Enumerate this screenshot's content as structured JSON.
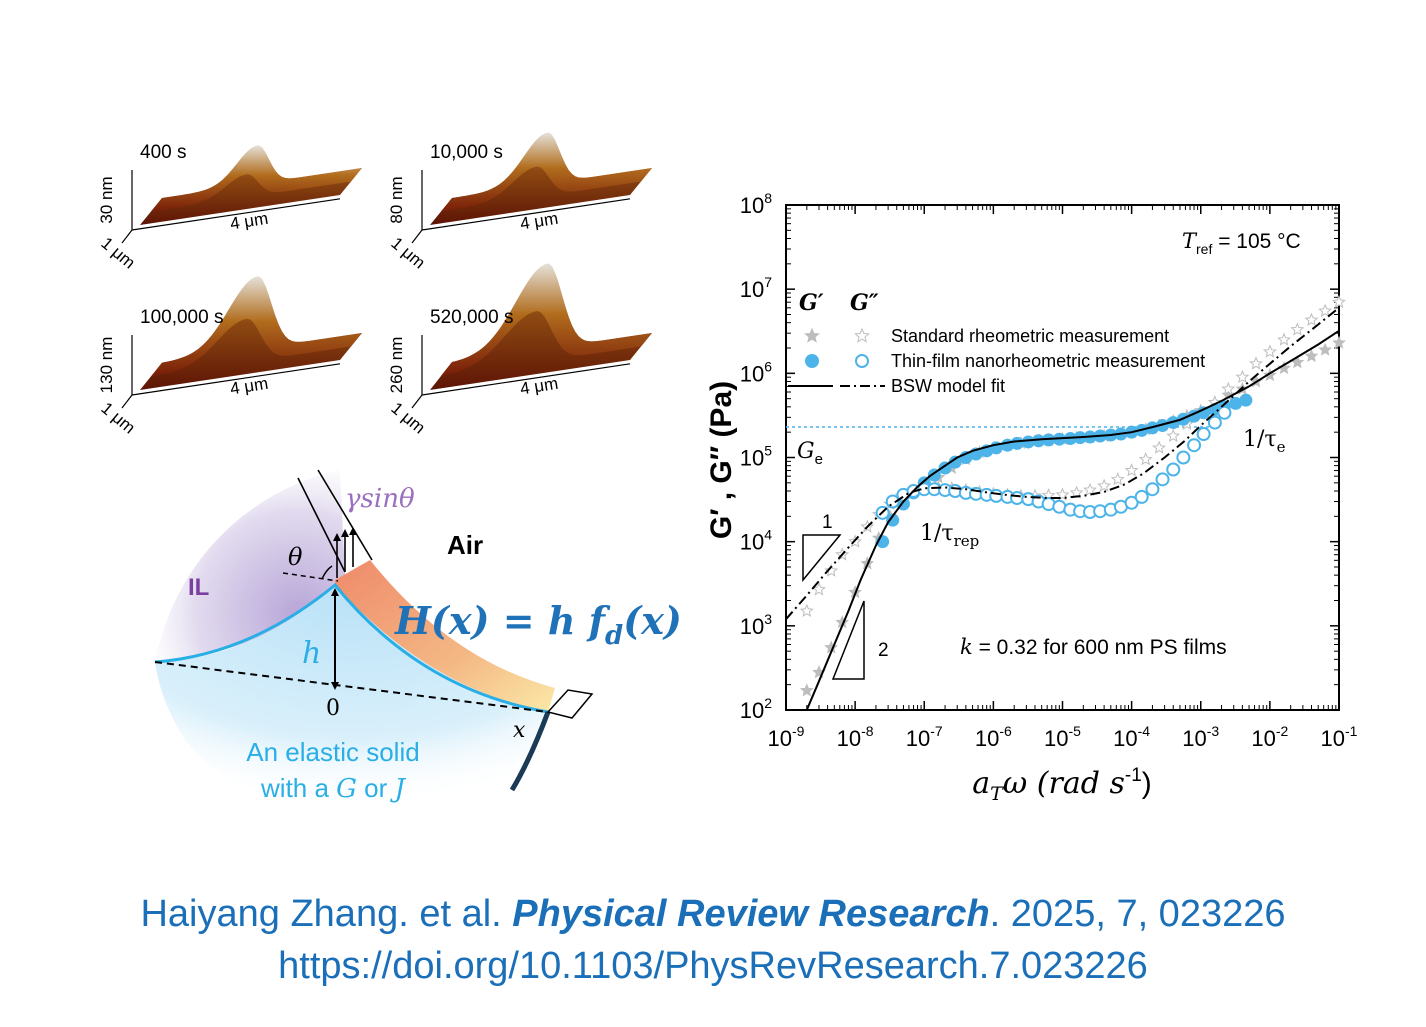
{
  "afm": {
    "frames": [
      {
        "time": "400 s",
        "height": "30 nm",
        "depth": "1 μm",
        "width": "4 μm",
        "peak": 0.45
      },
      {
        "time": "10,000 s",
        "height": "80 nm",
        "depth": "1 μm",
        "width": "4 μm",
        "peak": 0.6
      },
      {
        "time": "100,000 s",
        "height": "130 nm",
        "depth": "1 μm",
        "width": "4 μm",
        "peak": 0.85
      },
      {
        "time": "520,000 s",
        "height": "260 nm",
        "depth": "1 μm",
        "width": "4 μm",
        "peak": 1.0
      }
    ],
    "colors": {
      "low": "#7a1c08",
      "mid": "#b5701e",
      "high": "#e8e6e0"
    }
  },
  "schematic": {
    "force_label": "γsinθ",
    "air_label": "Air",
    "il_label": "IL",
    "theta_label": "θ",
    "h_label": "h",
    "origin_label": "0",
    "x_label": "x",
    "equation": "H(x) = h f",
    "equation_sub": "d",
    "equation_tail": "(x)",
    "solid_line1": "An elastic solid",
    "solid_line2_pre": "with a ",
    "solid_G": "G",
    "solid_or": " or ",
    "solid_J": "J",
    "colors": {
      "solid": "#2aaee6",
      "il": "#7b3fa0",
      "force": "#9b6fc0",
      "equation": "#1f72b8"
    }
  },
  "chart_data": {
    "type": "scatter",
    "x_scale": "log",
    "y_scale": "log",
    "xlim": [
      1e-09,
      0.1
    ],
    "ylim": [
      100,
      100000000.0
    ],
    "xlabel": "a",
    "xlabel_sub": "T",
    "xlabel_tail": "ω (rad s",
    "xlabel_sup": "-1",
    "xlabel_end": ")",
    "ylabel": "G′ , G″ (Pa)",
    "x_ticks": [
      {
        "v": 1e-09,
        "m": "10",
        "e": "-9"
      },
      {
        "v": 1e-08,
        "m": "10",
        "e": "-8"
      },
      {
        "v": 1e-07,
        "m": "10",
        "e": "-7"
      },
      {
        "v": 1e-06,
        "m": "10",
        "e": "-6"
      },
      {
        "v": 1e-05,
        "m": "10",
        "e": "-5"
      },
      {
        "v": 0.0001,
        "m": "10",
        "e": "-4"
      },
      {
        "v": 0.001,
        "m": "10",
        "e": "-3"
      },
      {
        "v": 0.01,
        "m": "10",
        "e": "-2"
      },
      {
        "v": 0.1,
        "m": "10",
        "e": "-1"
      }
    ],
    "y_ticks": [
      {
        "v": 100.0,
        "m": "10",
        "e": "2"
      },
      {
        "v": 1000.0,
        "m": "10",
        "e": "3"
      },
      {
        "v": 10000.0,
        "m": "10",
        "e": "4"
      },
      {
        "v": 100000.0,
        "m": "10",
        "e": "5"
      },
      {
        "v": 1000000.0,
        "m": "10",
        "e": "6"
      },
      {
        "v": 10000000.0,
        "m": "10",
        "e": "7"
      },
      {
        "v": 100000000.0,
        "m": "10",
        "e": "8"
      }
    ],
    "legend": {
      "header_g1": "G′",
      "header_g2": "G″",
      "entries": [
        "Standard rheometric measurement",
        "Thin-film nanorheometric measurement",
        "BSW model fit"
      ],
      "placement": "upper-left"
    },
    "annotations": {
      "tref": "T",
      "tref_sub": "ref",
      "tref_val": " = 105 °C",
      "ge": "G",
      "ge_sub": "e",
      "ge_value": 230000,
      "tau_e": "1/τ",
      "tau_e_sub": "e",
      "tau_rep": "1/τ",
      "tau_rep_sub": "rep",
      "k_text_k": "k",
      "k_text": " = 0.32 for 600 nm PS films",
      "slope1": "1",
      "slope2": "2"
    },
    "colors": {
      "standard": "#bdbdbd",
      "thin_film": "#4db4ea",
      "fit": "#000000",
      "ge_line": "#4db4ea"
    },
    "series": [
      {
        "name": "G′ Standard rheometric measurement",
        "marker": "star-filled",
        "x": [
          2e-09,
          3e-09,
          4.5e-09,
          6.5e-09,
          1e-08,
          1.5e-08,
          2.2e-08,
          3.2e-08,
          4.7e-08,
          7e-08,
          1e-07,
          1.6e-07,
          2.5e-07,
          4e-07,
          6.3e-07,
          1e-06,
          1.6e-06,
          2.5e-06,
          4e-06,
          6.3e-06,
          1e-05,
          1.6e-05,
          2.5e-05,
          4e-05,
          6.3e-05,
          0.0001,
          0.00016,
          0.00025,
          0.0004,
          0.00063,
          0.001,
          0.0016,
          0.0025,
          0.004,
          0.0063,
          0.01,
          0.016,
          0.025,
          0.04,
          0.063,
          0.1
        ],
        "y": [
          170,
          280,
          550,
          1100,
          2500,
          5500,
          11000,
          20000,
          30000,
          40000,
          48000,
          58000,
          75000,
          95000,
          115000,
          130000,
          140000,
          148000,
          155000,
          160000,
          165000,
          170000,
          175000,
          180000,
          190000,
          200000,
          215000,
          240000,
          270000,
          310000,
          360000,
          450000,
          550000,
          650000,
          800000,
          950000,
          1150000,
          1350000,
          1600000,
          1900000,
          2300000
        ]
      },
      {
        "name": "G″ Standard rheometric measurement",
        "marker": "star-open",
        "x": [
          2e-09,
          3e-09,
          4.5e-09,
          6.5e-09,
          1e-08,
          1.5e-08,
          2.2e-08,
          3.2e-08,
          4.7e-08,
          7e-08,
          1e-07,
          1.6e-07,
          2.5e-07,
          4e-07,
          6.3e-07,
          1e-06,
          1.6e-06,
          2.5e-06,
          4e-06,
          6.3e-06,
          1e-05,
          1.6e-05,
          2.5e-05,
          4e-05,
          6.3e-05,
          0.0001,
          0.00016,
          0.00025,
          0.0004,
          0.00063,
          0.001,
          0.0016,
          0.0025,
          0.004,
          0.0063,
          0.01,
          0.016,
          0.025,
          0.04,
          0.063,
          0.1
        ],
        "y": [
          1500,
          2700,
          4500,
          7000,
          10000,
          15000,
          21000,
          28000,
          35000,
          40000,
          43000,
          44000,
          43000,
          41000,
          39000,
          37000,
          36000,
          35000,
          35000,
          35500,
          36000,
          38000,
          41000,
          46000,
          55000,
          70000,
          95000,
          130000,
          180000,
          250000,
          340000,
          450000,
          650000,
          900000,
          1300000,
          1800000,
          2500000,
          3300000,
          4300000,
          5500000,
          7000000
        ]
      },
      {
        "name": "G′ Thin-film nanorheometric measurement",
        "marker": "circle-filled",
        "x": [
          2.5e-08,
          3.5e-08,
          5e-08,
          7e-08,
          1e-07,
          1.4e-07,
          2e-07,
          2.8e-07,
          4e-07,
          5.6e-07,
          8e-07,
          1.1e-06,
          1.6e-06,
          2.2e-06,
          3.2e-06,
          4.5e-06,
          6.3e-06,
          9e-06,
          1.3e-05,
          1.8e-05,
          2.5e-05,
          3.5e-05,
          5e-05,
          7e-05,
          0.0001,
          0.00014,
          0.0002,
          0.00028,
          0.0004,
          0.00056,
          0.0008,
          0.0011,
          0.0016,
          0.0022,
          0.0032,
          0.0045
        ],
        "y": [
          10000,
          18000,
          28000,
          38000,
          50000,
          62000,
          75000,
          88000,
          100000,
          110000,
          120000,
          130000,
          140000,
          147000,
          153000,
          158000,
          162000,
          165000,
          168000,
          172000,
          175000,
          180000,
          185000,
          190000,
          200000,
          210000,
          225000,
          240000,
          260000,
          285000,
          310000,
          340000,
          370000,
          400000,
          440000,
          480000
        ]
      },
      {
        "name": "G″ Thin-film nanorheometric measurement",
        "marker": "circle-open",
        "x": [
          2.5e-08,
          3.5e-08,
          5e-08,
          7e-08,
          1e-07,
          1.4e-07,
          2e-07,
          2.8e-07,
          4e-07,
          5.6e-07,
          8e-07,
          1.1e-06,
          1.6e-06,
          2.2e-06,
          3.2e-06,
          4.5e-06,
          6.3e-06,
          9e-06,
          1.3e-05,
          1.8e-05,
          2.5e-05,
          3.5e-05,
          5e-05,
          7e-05,
          0.0001,
          0.00014,
          0.0002,
          0.00028,
          0.0004,
          0.00056,
          0.0008,
          0.0011,
          0.0016,
          0.0022
        ],
        "y": [
          22000,
          30000,
          36000,
          40000,
          42000,
          42000,
          41000,
          40000,
          38000,
          37000,
          36000,
          35000,
          34000,
          33000,
          32000,
          30000,
          28000,
          26000,
          24000,
          23000,
          22500,
          23000,
          24000,
          26000,
          29000,
          34000,
          42000,
          55000,
          72000,
          100000,
          140000,
          190000,
          260000,
          340000
        ]
      },
      {
        "name": "G′ BSW model fit",
        "marker": "line-solid",
        "x": [
          2e-09,
          3e-09,
          5e-09,
          8e-09,
          1.2e-08,
          2e-08,
          3e-08,
          5e-08,
          8e-08,
          1.2e-07,
          2e-07,
          3e-07,
          5e-07,
          1e-06,
          2e-06,
          5e-06,
          1e-05,
          2e-05,
          5e-05,
          0.0001,
          0.0002,
          0.0005,
          0.001,
          0.002,
          0.005,
          0.01,
          0.02,
          0.05,
          0.1
        ],
        "y": [
          100,
          220,
          600,
          1500,
          3500,
          9000,
          17000,
          30000,
          45000,
          60000,
          80000,
          100000,
          120000,
          140000,
          155000,
          165000,
          170000,
          175000,
          185000,
          200000,
          230000,
          280000,
          360000,
          470000,
          700000,
          1000000,
          1400000,
          2200000,
          3200000
        ]
      },
      {
        "name": "G″ BSW model fit",
        "marker": "line-dashdot",
        "x": [
          1e-09,
          2e-09,
          4e-09,
          8e-09,
          1.5e-08,
          3e-08,
          6e-08,
          1e-07,
          2e-07,
          4e-07,
          8e-07,
          1.5e-06,
          3e-06,
          6e-06,
          1e-05,
          2e-05,
          4e-05,
          8e-05,
          0.00015,
          0.0003,
          0.0006,
          0.001,
          0.002,
          0.005,
          0.01,
          0.02,
          0.05,
          0.1
        ],
        "y": [
          1200,
          2300,
          4500,
          8500,
          15000,
          26000,
          38000,
          43000,
          44000,
          42000,
          38500,
          36000,
          34000,
          33000,
          33000,
          35000,
          39000,
          48000,
          65000,
          100000,
          160000,
          240000,
          400000,
          800000,
          1300000,
          2100000,
          3800000,
          6000000
        ]
      }
    ]
  },
  "citation": {
    "authors": "Haiyang Zhang. et al. ",
    "journal": "Physical Review Research",
    "rest": ". 2025, 7, 023226",
    "doi": "https://doi.org/10.1103/PhysRevResearch.7.023226"
  }
}
